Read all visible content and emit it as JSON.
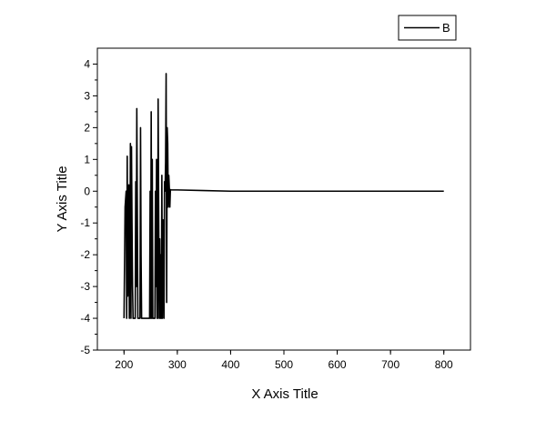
{
  "chart_data": {
    "type": "line",
    "xlabel": "X Axis Title",
    "ylabel": "Y Axis Title",
    "xlim": [
      150,
      850
    ],
    "ylim": [
      -5,
      4.5
    ],
    "x_ticks": [
      200,
      300,
      400,
      500,
      600,
      700,
      800
    ],
    "y_ticks": [
      -5,
      -4,
      -3,
      -2,
      -1,
      0,
      1,
      2,
      3,
      4
    ],
    "grid": false,
    "legend": {
      "position": "top-right"
    },
    "line_color": "#000000",
    "series": [
      {
        "name": "B",
        "x": [
          200,
          202,
          204,
          205,
          206,
          207,
          208,
          209,
          210,
          211,
          212,
          213,
          214,
          215,
          216,
          217,
          218,
          219,
          220,
          221,
          222,
          223,
          224,
          226,
          228,
          230,
          231,
          232,
          233,
          234,
          235,
          236,
          237,
          238,
          240,
          242,
          244,
          246,
          248,
          249,
          250,
          251,
          252,
          253,
          254,
          255,
          256,
          257,
          258,
          259,
          260,
          261,
          262,
          263,
          264,
          266,
          267,
          268,
          269,
          270,
          271,
          272,
          273,
          274,
          275,
          276,
          277,
          278,
          279,
          280,
          281,
          282,
          283,
          284,
          285,
          286,
          287,
          288,
          290,
          300,
          350,
          400,
          420,
          500,
          600,
          700,
          800
        ],
        "y": [
          -4,
          -0.5,
          0,
          -4,
          1.1,
          -3.3,
          -1,
          0.2,
          -4,
          -3,
          1.5,
          -4,
          1.4,
          -1,
          -3,
          -4,
          -4,
          -4,
          -4,
          -4,
          0.3,
          -3,
          2.6,
          -4,
          -4,
          -4,
          2.0,
          -2,
          -4,
          -4,
          -4,
          -4,
          -4,
          -4,
          -4,
          -4,
          -4,
          -4,
          -4,
          0,
          -4,
          2.5,
          -4,
          1.0,
          -4,
          -4,
          -4,
          -4,
          -4,
          0,
          -3,
          1.0,
          -4,
          -4,
          2.9,
          -4,
          -1.5,
          -4,
          -2,
          -4,
          0.5,
          -4,
          -0.9,
          -2,
          -4,
          0.3,
          0,
          0.9,
          3.7,
          -3.5,
          2.0,
          1.5,
          -0.5,
          0.5,
          0.1,
          -0.5,
          0.05,
          0.04,
          0.04,
          0.04,
          0.02,
          0,
          0,
          0,
          0,
          0,
          0
        ]
      }
    ]
  }
}
